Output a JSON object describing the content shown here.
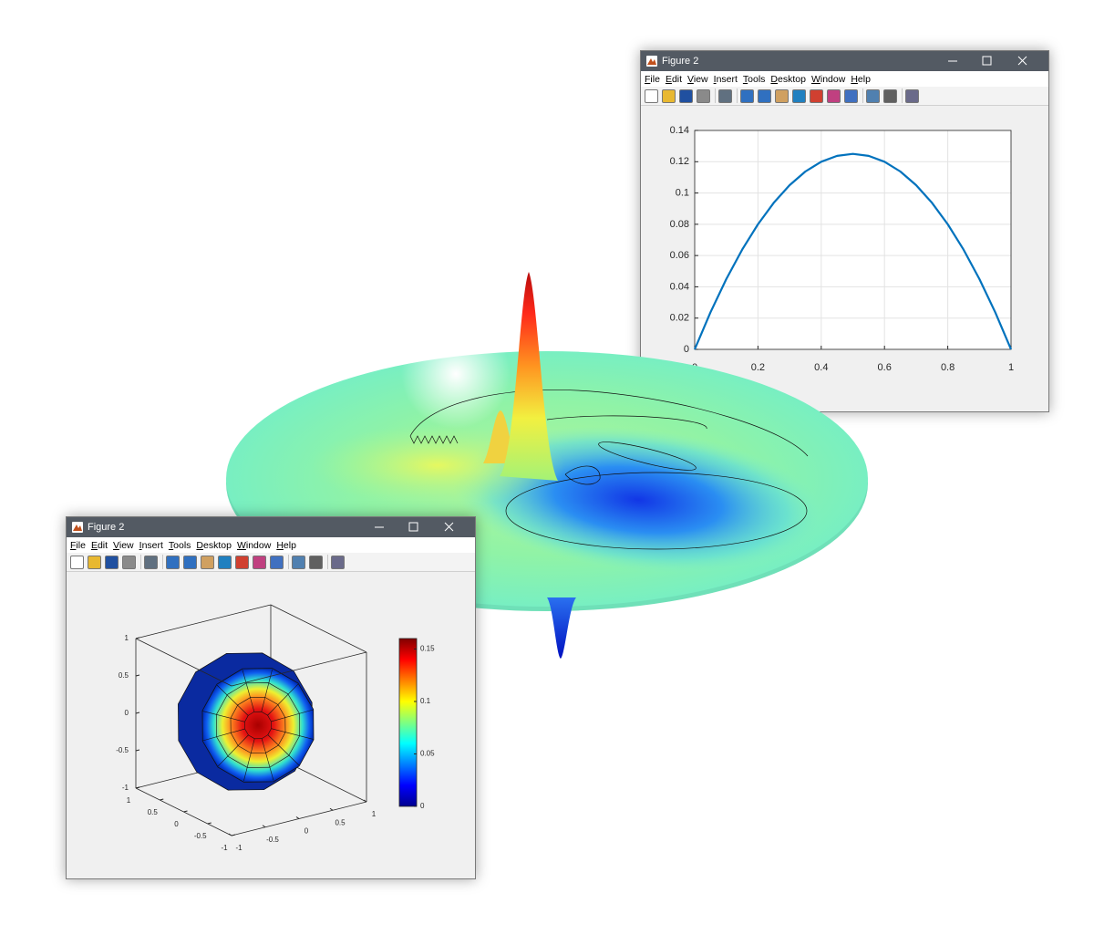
{
  "windows": [
    {
      "title": "Figure 2",
      "menu": [
        "File",
        "Edit",
        "View",
        "Insert",
        "Tools",
        "Desktop",
        "Window",
        "Help"
      ]
    },
    {
      "title": "Figure 2",
      "menu": [
        "File",
        "Edit",
        "View",
        "Insert",
        "Tools",
        "Desktop",
        "Window",
        "Help"
      ]
    }
  ],
  "chart_data": [
    {
      "type": "line",
      "x": [
        0,
        0.05,
        0.1,
        0.15,
        0.2,
        0.25,
        0.3,
        0.35,
        0.4,
        0.45,
        0.5,
        0.55,
        0.6,
        0.65,
        0.7,
        0.75,
        0.8,
        0.85,
        0.9,
        0.95,
        1
      ],
      "series": [
        {
          "color": "#0072bd",
          "values": [
            0,
            0.02375,
            0.045,
            0.06375,
            0.08,
            0.09375,
            0.105,
            0.11375,
            0.12,
            0.12375,
            0.125,
            0.12375,
            0.12,
            0.11375,
            0.105,
            0.09375,
            0.08,
            0.06375,
            0.045,
            0.02375,
            0
          ]
        }
      ],
      "xlim": [
        0,
        1
      ],
      "ylim": [
        0,
        0.14
      ],
      "xticks": [
        0,
        0.2,
        0.4,
        0.6,
        0.8,
        1
      ],
      "yticks": [
        0,
        0.02,
        0.04,
        0.06,
        0.08,
        0.1,
        0.12,
        0.14
      ],
      "grid": true
    },
    {
      "type": "surface3d",
      "xlim": [
        -1,
        1
      ],
      "ylim": [
        -1,
        1
      ],
      "zlim": [
        -1,
        1
      ],
      "xticks": [
        -1,
        -0.5,
        0,
        0.5,
        1
      ],
      "yticks": [
        -1,
        -0.5,
        0,
        0.5,
        1
      ],
      "zticks": [
        -1,
        -0.5,
        0,
        0.5,
        1
      ],
      "colormap": "jet",
      "clim": [
        0,
        0.16
      ],
      "cticks": [
        0,
        0.05,
        0.1,
        0.15
      ]
    }
  ]
}
